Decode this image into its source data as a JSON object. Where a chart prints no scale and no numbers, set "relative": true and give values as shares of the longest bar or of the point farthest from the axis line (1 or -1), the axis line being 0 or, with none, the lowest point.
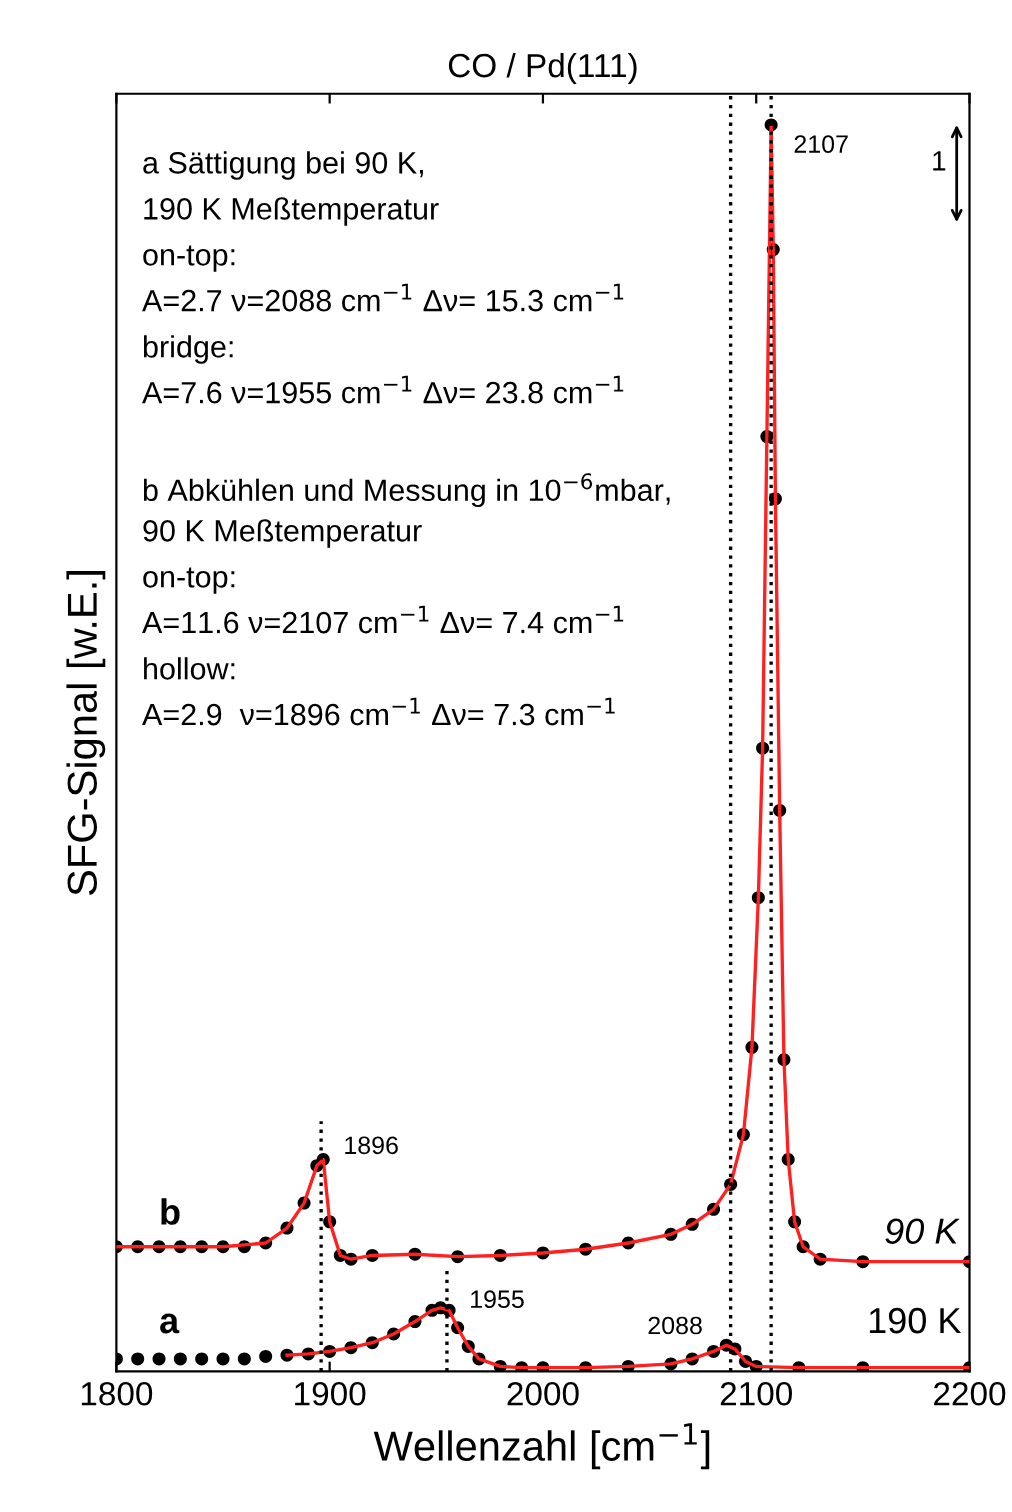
{
  "chart_data": {
    "type": "scatter",
    "title": "CO / Pd(111)",
    "xlabel": "Wellenzahl [cm$^{−1}$]",
    "ylabel": "SFG-Signal [w.E.]",
    "relative": true,
    "xlim": [
      1800,
      2200
    ],
    "xticks": [
      1800,
      1900,
      2000,
      2100,
      2200
    ],
    "grid": false,
    "legend": false,
    "series": [
      {
        "marker": "circle",
        "color": "#000000",
        "x": [
          1800,
          1810,
          1820,
          1830,
          1840,
          1850,
          1860,
          1870,
          1880,
          1890,
          1900,
          1910,
          1920,
          1930,
          1940,
          1948,
          1952,
          1956,
          1960,
          1965,
          1970,
          1980,
          1990,
          2000,
          2020,
          2040,
          2060,
          2070,
          2080,
          2086,
          2090,
          2095,
          2100,
          2120,
          2150,
          2200
        ],
        "values": [
          0.01,
          0.01,
          0.01,
          0.01,
          0.01,
          0.01,
          0.01,
          0.012,
          0.013,
          0.014,
          0.016,
          0.019,
          0.023,
          0.03,
          0.04,
          0.049,
          0.051,
          0.049,
          0.035,
          0.02,
          0.01,
          0.004,
          0.003,
          0.003,
          0.003,
          0.004,
          0.006,
          0.01,
          0.016,
          0.021,
          0.018,
          0.008,
          0.004,
          0.003,
          0.003,
          0.003
        ]
      },
      {
        "type": "line",
        "marker": "none",
        "line_style": "solid",
        "color": "#ff2020",
        "x": [
          1880,
          1890,
          1900,
          1910,
          1920,
          1930,
          1940,
          1948,
          1952,
          1956,
          1960,
          1965,
          1970,
          1980,
          1990,
          2000,
          2020,
          2040,
          2060,
          2070,
          2080,
          2086,
          2090,
          2095,
          2100,
          2120,
          2150,
          2200
        ],
        "values": [
          0.013,
          0.014,
          0.016,
          0.019,
          0.023,
          0.03,
          0.04,
          0.049,
          0.051,
          0.049,
          0.035,
          0.02,
          0.01,
          0.004,
          0.003,
          0.003,
          0.003,
          0.004,
          0.006,
          0.01,
          0.016,
          0.021,
          0.018,
          0.008,
          0.004,
          0.003,
          0.003,
          0.003
        ]
      },
      {
        "marker": "circle",
        "color": "#000000",
        "x": [
          1800,
          1810,
          1820,
          1830,
          1840,
          1850,
          1860,
          1870,
          1880,
          1888,
          1894,
          1897,
          1900,
          1905,
          1910,
          1920,
          1940,
          1960,
          1980,
          2000,
          2020,
          2040,
          2060,
          2070,
          2080,
          2088,
          2094,
          2098,
          2101,
          2103,
          2105,
          2107,
          2108,
          2109,
          2111,
          2113,
          2115,
          2118,
          2122,
          2130,
          2150,
          2200
        ],
        "values": [
          0.1,
          0.1,
          0.1,
          0.1,
          0.1,
          0.1,
          0.1,
          0.103,
          0.115,
          0.135,
          0.165,
          0.17,
          0.12,
          0.093,
          0.09,
          0.093,
          0.094,
          0.092,
          0.093,
          0.095,
          0.098,
          0.103,
          0.11,
          0.118,
          0.13,
          0.15,
          0.19,
          0.26,
          0.38,
          0.5,
          0.75,
          1.0,
          0.9,
          0.7,
          0.45,
          0.25,
          0.17,
          0.12,
          0.1,
          0.09,
          0.088,
          0.088
        ]
      },
      {
        "type": "line",
        "marker": "none",
        "line_style": "solid",
        "color": "#ff2020",
        "x": [
          1800,
          1850,
          1870,
          1880,
          1888,
          1894,
          1897,
          1900,
          1905,
          1910,
          1920,
          1940,
          1960,
          1980,
          2000,
          2020,
          2040,
          2060,
          2070,
          2080,
          2088,
          2094,
          2098,
          2101,
          2103,
          2105,
          2107,
          2108,
          2109,
          2111,
          2113,
          2115,
          2118,
          2122,
          2130,
          2150,
          2200
        ],
        "values": [
          0.1,
          0.1,
          0.103,
          0.115,
          0.135,
          0.165,
          0.17,
          0.12,
          0.093,
          0.09,
          0.093,
          0.094,
          0.092,
          0.093,
          0.095,
          0.098,
          0.103,
          0.11,
          0.118,
          0.13,
          0.15,
          0.19,
          0.26,
          0.38,
          0.5,
          0.75,
          1.0,
          0.9,
          0.7,
          0.45,
          0.25,
          0.17,
          0.12,
          0.1,
          0.09,
          0.088,
          0.088
        ]
      }
    ],
    "ref_lines": [
      {
        "axis": "x",
        "value": 1896,
        "color": "#000000",
        "line_style": "dotted"
      },
      {
        "axis": "x",
        "value": 1955,
        "color": "#000000",
        "line_style": "dotted"
      },
      {
        "axis": "x",
        "value": 2088,
        "color": "#000000",
        "line_style": "dotted"
      },
      {
        "axis": "x",
        "value": 2107,
        "color": "#000000",
        "line_style": "dotted"
      }
    ],
    "annotations": [
      {
        "text": "2107",
        "x": 2107,
        "y": 1.0
      },
      {
        "text": "1896",
        "x": 1896,
        "y": 0.17
      },
      {
        "text": "1955",
        "x": 1955,
        "y": 0.051
      },
      {
        "text": "2088",
        "x": 2088,
        "y": 0.021
      },
      "b",
      "90 K",
      "a",
      "190 K",
      "1",
      "a Sättigung bei 90 K,",
      "190 K Meßtemperatur",
      "on-top:",
      "A=2.7 ν=2088 cm$^{−1}$ Δν= 15.3 cm$^{−1}$",
      "bridge:",
      "A=7.6 ν=1955 cm$^{−1}$ Δν= 23.8 cm$^{−1}$",
      "b Abkühlen und Messung in 10$^{−6}$mbar,",
      "90 K Meßtemperatur",
      "on-top:",
      "A=11.6 ν=2107 cm$^{−1}$ Δν= 7.4 cm$^{−1}$",
      "hollow:",
      "A=2.9  ν=1896 cm$^{−1}$ Δν= 7.3 cm$^{−1}$"
    ]
  }
}
